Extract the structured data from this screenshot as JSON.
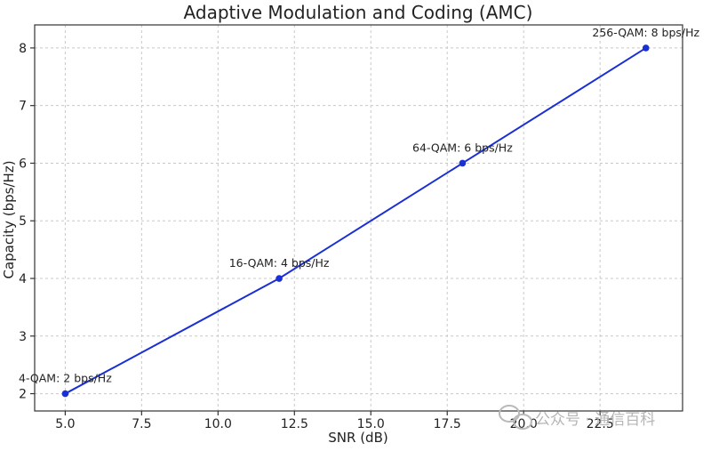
{
  "chart_data": {
    "type": "line",
    "title": "Adaptive Modulation and Coding (AMC)",
    "xlabel": "SNR (dB)",
    "ylabel": "Capacity (bps/Hz)",
    "xlim": [
      4.0,
      25.2
    ],
    "ylim": [
      1.7,
      8.4
    ],
    "xticks": [
      5.0,
      7.5,
      10.0,
      12.5,
      15.0,
      17.5,
      20.0,
      22.5
    ],
    "xtick_labels": [
      "5.0",
      "7.5",
      "10.0",
      "12.5",
      "15.0",
      "17.5",
      "20.0",
      "22.5"
    ],
    "yticks": [
      2,
      3,
      4,
      5,
      6,
      7,
      8
    ],
    "ytick_labels": [
      "2",
      "3",
      "4",
      "5",
      "6",
      "7",
      "8"
    ],
    "grid": true,
    "series": [
      {
        "color": "#1a2fd4",
        "x": [
          5,
          12,
          18,
          24
        ],
        "y": [
          2,
          4,
          6,
          8
        ]
      }
    ],
    "annotations": [
      {
        "x": 5,
        "y": 2,
        "text": "4-QAM: 2 bps/Hz"
      },
      {
        "x": 12,
        "y": 4,
        "text": "16-QAM: 4 bps/Hz"
      },
      {
        "x": 18,
        "y": 6,
        "text": "64-QAM: 6 bps/Hz"
      },
      {
        "x": 24,
        "y": 8,
        "text": "256-QAM: 8 bps/Hz"
      }
    ]
  },
  "watermark": {
    "text": "公众号 · 通信百科",
    "icon": "wechat-icon"
  }
}
